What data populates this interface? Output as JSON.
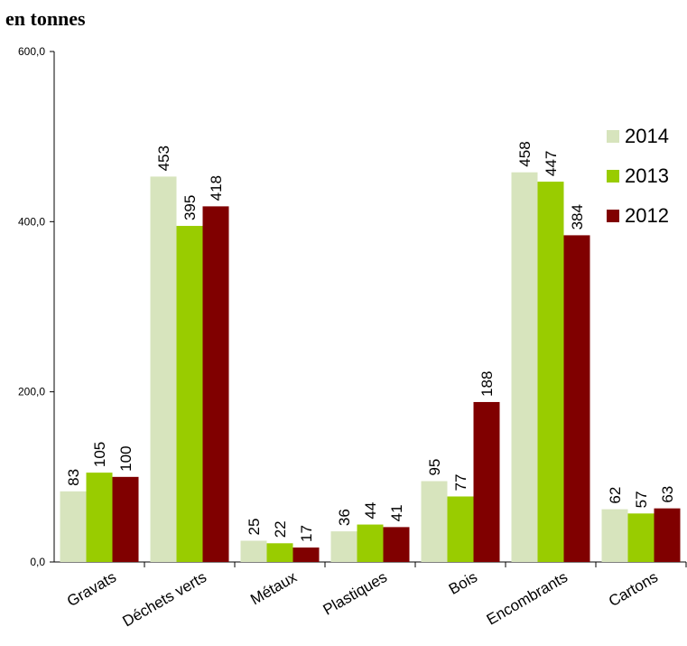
{
  "chart_data": {
    "type": "bar",
    "title": "en tonnes",
    "categories": [
      "Gravats",
      "Déchets verts",
      "Métaux",
      "Plastiques",
      "Bois",
      "Encombrants",
      "Cartons"
    ],
    "series": [
      {
        "name": "2014",
        "values": [
          83,
          453,
          25,
          36,
          95,
          458,
          62
        ],
        "color": "#d7e4bd"
      },
      {
        "name": "2013",
        "values": [
          105,
          395,
          22,
          44,
          77,
          447,
          57
        ],
        "color": "#99cc00"
      },
      {
        "name": "2012",
        "values": [
          100,
          418,
          17,
          41,
          188,
          384,
          63
        ],
        "color": "#800000"
      }
    ],
    "yticks": [
      "0,0",
      "200,0",
      "400,0",
      "600,0"
    ],
    "ylim": [
      0,
      600
    ],
    "legend_position": "right",
    "grid": false
  }
}
